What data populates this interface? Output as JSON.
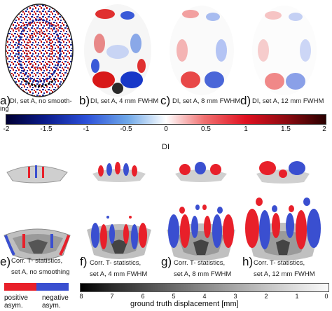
{
  "top_panels": [
    {
      "letter": "a)",
      "caption": "DI, set A, no smooth-",
      "caption2": "ing"
    },
    {
      "letter": "b)",
      "caption": "DI, set A, 4 mm FWHM",
      "caption2": ""
    },
    {
      "letter": "c)",
      "caption": "DI, set A, 8 mm FWHM",
      "caption2": ""
    },
    {
      "letter": "d)",
      "caption": "DI, set A, 12 mm FWHM",
      "caption2": ""
    }
  ],
  "di_colorbar": {
    "ticks": [
      "-2",
      "-1.5",
      "-1",
      "-0.5",
      "0",
      "0.5",
      "1",
      "1.5",
      "2"
    ],
    "label": "DI",
    "colors": [
      "#000033",
      "#0a1a8a",
      "#2b4fd8",
      "#6fa8e8",
      "#ffffff",
      "#f07070",
      "#e01020",
      "#8a0a10",
      "#2a0000"
    ]
  },
  "bottom_panels": [
    {
      "letter": "e)",
      "caption": "Corr. T- statistics,",
      "caption2": "set A, no smoothing"
    },
    {
      "letter": "f)",
      "caption": "Corr. T- statistics,",
      "caption2": "set A, 4 mm FWHM"
    },
    {
      "letter": "g)",
      "caption": "Corr. T- statistics,",
      "caption2": "set A, 8 mm FWHM"
    },
    {
      "letter": "h)",
      "caption": "Corr. T-  statistics,",
      "caption2": "set A, 12 mm FWHM"
    }
  ],
  "asym_legend": {
    "positive": "positive asym.",
    "negative": "negative asym.",
    "positive_color": "#e8202a",
    "negative_color": "#3a4fd0"
  },
  "gt_colorbar": {
    "ticks": [
      "8",
      "7",
      "6",
      "5",
      "4",
      "3",
      "2",
      "1",
      "0"
    ],
    "label": "ground truth displacement [mm]"
  }
}
